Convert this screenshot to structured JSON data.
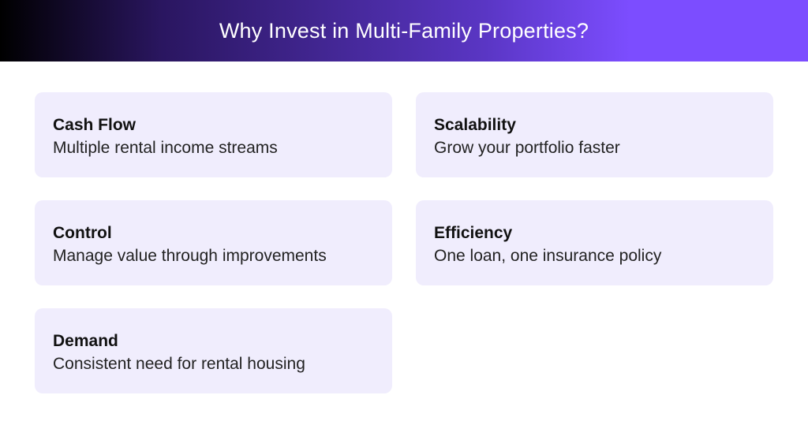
{
  "header": {
    "title": "Why Invest in Multi-Family Properties?"
  },
  "colors": {
    "gradient_start": "#000000",
    "gradient_end": "#7c4dff",
    "card_bg": "#f0edfd"
  },
  "cards": [
    {
      "title": "Cash Flow",
      "description": "Multiple rental income streams"
    },
    {
      "title": "Scalability",
      "description": "Grow your portfolio faster"
    },
    {
      "title": "Control",
      "description": "Manage value through improvements"
    },
    {
      "title": "Efficiency",
      "description": "One loan, one insurance policy"
    },
    {
      "title": "Demand",
      "description": "Consistent need for rental housing"
    }
  ]
}
